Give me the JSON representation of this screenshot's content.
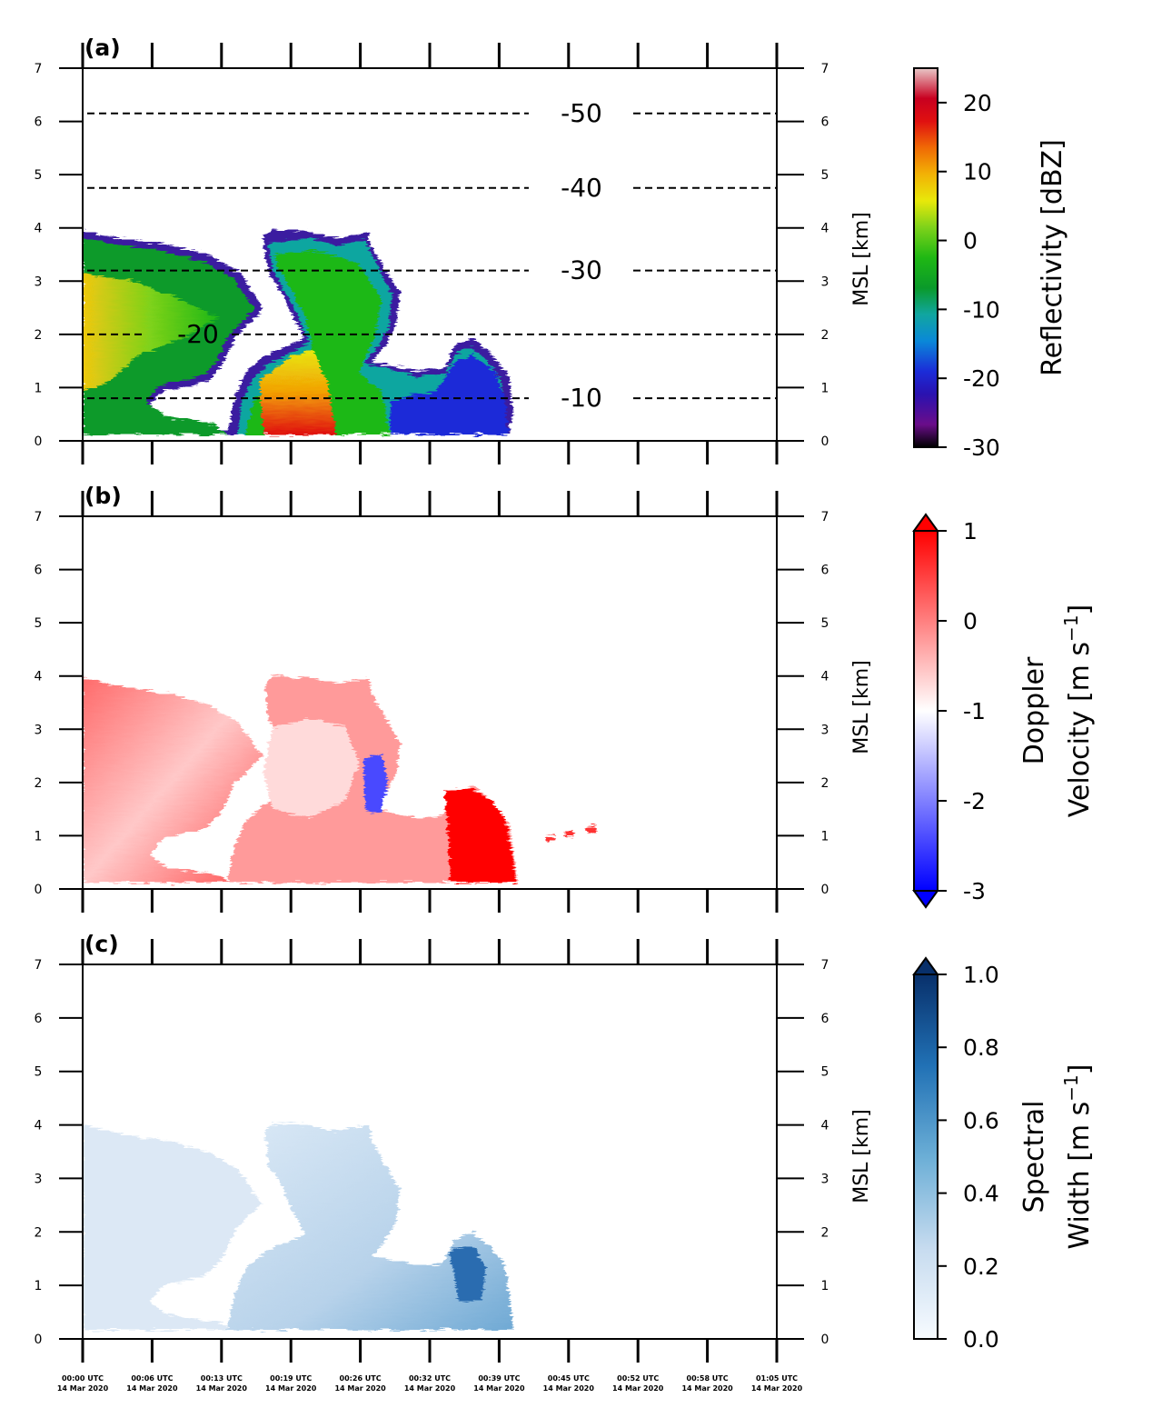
{
  "chart_data": [
    {
      "type": "heatmap",
      "panel_label": "(a)",
      "variable": "Reflectivity",
      "ylabel": "MSL [km]",
      "ylim": [
        0,
        7
      ],
      "yticks": [
        0,
        1,
        2,
        3,
        4,
        5,
        6,
        7
      ],
      "colorbar": {
        "label": "Reflectivity [dBZ]",
        "range": [
          -30,
          25
        ],
        "ticks": [
          -30,
          -20,
          -10,
          0,
          10,
          20
        ],
        "tick_labels": [
          "-30",
          "-20",
          "-10",
          "0",
          "10",
          "20"
        ],
        "extend": "none",
        "colormap": "pyart_NWSRef-like"
      },
      "isotherms": [
        {
          "label": "-10",
          "height_km": 0.8
        },
        {
          "label": "-20",
          "height_km": 2.0
        },
        {
          "label": "-30",
          "height_km": 3.2
        },
        {
          "label": "-40",
          "height_km": 4.75
        },
        {
          "label": "-50",
          "height_km": 6.15
        }
      ],
      "echo_top_km": 4.0,
      "echo_end_time_index": 7
    },
    {
      "type": "heatmap",
      "panel_label": "(b)",
      "variable": "Doppler Velocity",
      "ylabel": "MSL [km]",
      "ylim": [
        0,
        7
      ],
      "yticks": [
        0,
        1,
        2,
        3,
        4,
        5,
        6,
        7
      ],
      "colorbar": {
        "label_line1": "Doppler",
        "label_line2": "Velocity [m s",
        "label_sup": "−1",
        "label_end": "]",
        "range": [
          -3,
          1
        ],
        "ticks": [
          -3,
          -2,
          -1,
          0,
          1
        ],
        "tick_labels": [
          "-3",
          "-2",
          "-1",
          "0",
          "1"
        ],
        "extend": "both",
        "colormap": "bwr"
      }
    },
    {
      "type": "heatmap",
      "panel_label": "(c)",
      "variable": "Spectral Width",
      "ylabel": "MSL [km]",
      "ylim": [
        0,
        7
      ],
      "yticks": [
        0,
        1,
        2,
        3,
        4,
        5,
        6,
        7
      ],
      "colorbar": {
        "label_line1": "Spectral",
        "label_line2": "Width [m s",
        "label_sup": "−1",
        "label_end": "]",
        "range": [
          0.0,
          1.0
        ],
        "ticks": [
          0.0,
          0.2,
          0.4,
          0.6,
          0.8,
          1.0
        ],
        "tick_labels": [
          "0.0",
          "0.2",
          "0.4",
          "0.6",
          "0.8",
          "1.0"
        ],
        "extend": "max",
        "colormap": "Blues"
      }
    }
  ],
  "time_axis": {
    "labels": [
      "00:00 UTC",
      "00:06 UTC",
      "00:13 UTC",
      "00:19 UTC",
      "00:26 UTC",
      "00:32 UTC",
      "00:39 UTC",
      "00:45 UTC",
      "00:52 UTC",
      "00:58 UTC",
      "01:05 UTC"
    ],
    "date_label": "14 Mar 2020"
  },
  "colors": {
    "axis": "#000000",
    "isotherm": "#000000"
  }
}
